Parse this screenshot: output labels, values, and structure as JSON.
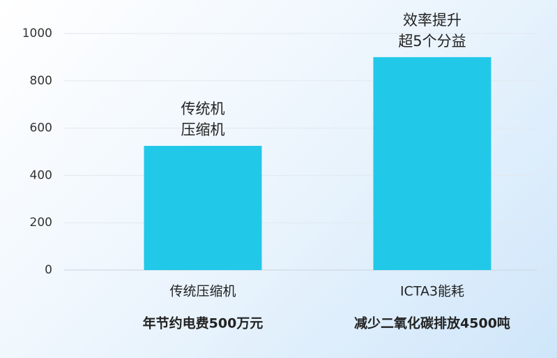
{
  "chart_data": {
    "type": "bar",
    "categories": [
      "传统压缩机",
      "ICTA3能耗"
    ],
    "sublabels": [
      "年节约电费500万元",
      "减少二氧化碳排放4500吨"
    ],
    "annotations": [
      [
        "传统机",
        "压缩机"
      ],
      [
        "效率提升",
        "超5个分益"
      ]
    ],
    "values": [
      525,
      900
    ],
    "color": "#22c8e8",
    "ylim": [
      0,
      1000
    ],
    "yticks": [
      0,
      200,
      400,
      600,
      800,
      1000
    ],
    "grid": true
  }
}
